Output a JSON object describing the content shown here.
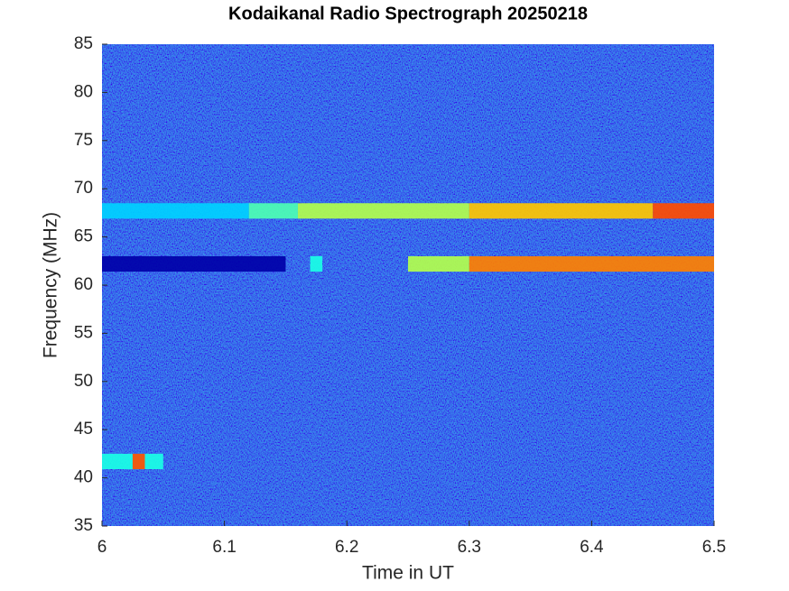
{
  "chart_data": {
    "type": "spectrogram",
    "title": "Kodaikanal Radio Spectrograph  20250218",
    "x_label": "Time in UT",
    "y_label": "Frequency (MHz)",
    "xlim": [
      6,
      6.5
    ],
    "ylim": [
      35,
      85
    ],
    "xticks": [
      6,
      6.1,
      6.2,
      6.3,
      6.4,
      6.5
    ],
    "yticks": [
      35,
      40,
      45,
      50,
      55,
      60,
      65,
      70,
      75,
      80,
      85
    ],
    "colormap": "jet",
    "bands": [
      {
        "x": [
          6.0,
          6.12
        ],
        "y": 67.7,
        "level": 0.33
      },
      {
        "x": [
          6.12,
          6.16
        ],
        "y": 67.7,
        "level": 0.45
      },
      {
        "x": [
          6.16,
          6.3
        ],
        "y": 67.7,
        "level": 0.55
      },
      {
        "x": [
          6.3,
          6.45
        ],
        "y": 67.7,
        "level": 0.68
      },
      {
        "x": [
          6.45,
          6.5
        ],
        "y": 67.7,
        "level": 0.8
      },
      {
        "x": [
          6.0,
          6.15
        ],
        "y": 62.2,
        "level": 0.04
      },
      {
        "x": [
          6.17,
          6.18
        ],
        "y": 62.2,
        "level": 0.4
      },
      {
        "x": [
          6.25,
          6.3
        ],
        "y": 62.2,
        "level": 0.55
      },
      {
        "x": [
          6.3,
          6.5
        ],
        "y": 62.2,
        "level": 0.75
      },
      {
        "x": [
          6.0,
          6.05
        ],
        "y": 41.7,
        "level": 0.4
      },
      {
        "x": [
          6.025,
          6.035
        ],
        "y": 41.7,
        "level": 0.8
      }
    ]
  }
}
